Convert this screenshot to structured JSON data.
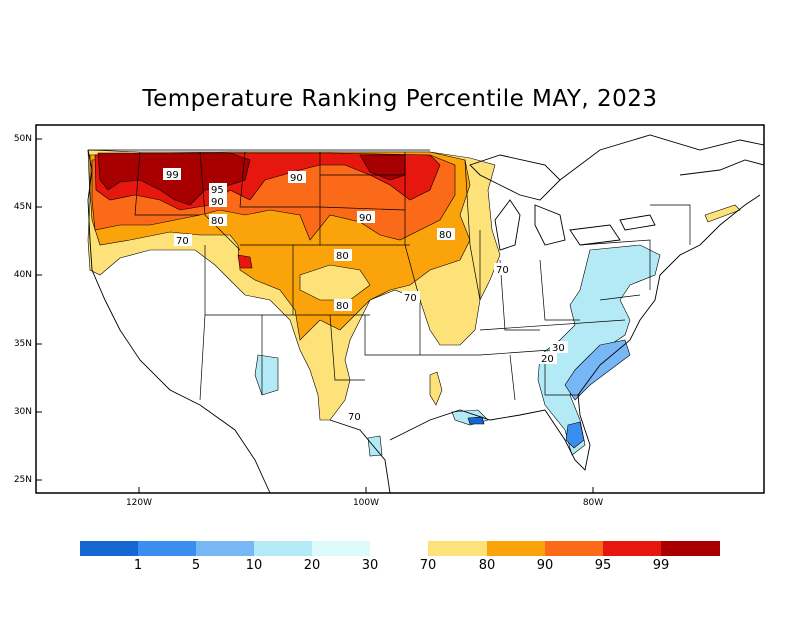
{
  "title": "Temperature Ranking Percentile MAY, 2023",
  "latitude_labels": [
    "50N",
    "45N",
    "40N",
    "35N",
    "30N",
    "25N"
  ],
  "longitude_labels": [
    "120W",
    "100W",
    "80W"
  ],
  "contour_labels": [
    "99",
    "95",
    "90",
    "90",
    "90",
    "80",
    "80",
    "80",
    "70",
    "80",
    "70",
    "70",
    "30",
    "20",
    "70"
  ],
  "legend": {
    "tick_labels": [
      "1",
      "5",
      "10",
      "20",
      "30",
      "70",
      "80",
      "90",
      "95",
      "99"
    ],
    "colors": [
      "#1565d2",
      "#3a8ef0",
      "#78b7f5",
      "#b4eaf6",
      "#dcfcfc",
      "#fde27a",
      "#fba30a",
      "#fb6a18",
      "#e5170e",
      "#a80000"
    ]
  },
  "colors": {
    "below_normal_light": "#b4eaf6",
    "below_normal_mid": "#78b7f5",
    "below_normal_dark": "#3a8ef0",
    "above_70": "#fde27a",
    "above_80": "#fba30a",
    "above_90": "#fb6a18",
    "above_95": "#e5170e",
    "above_99": "#a80000"
  }
}
